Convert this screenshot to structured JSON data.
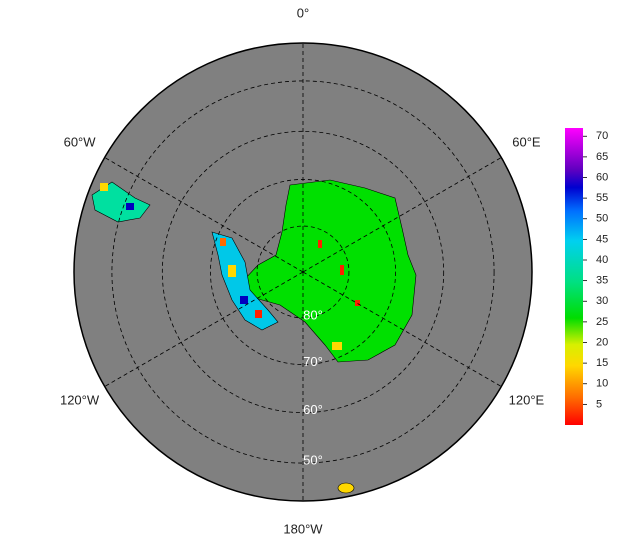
{
  "map": {
    "meridians": [
      {
        "value": 0,
        "label": "0°"
      },
      {
        "value": 60,
        "label": "60°E"
      },
      {
        "value": 120,
        "label": "120°E"
      },
      {
        "value": -180,
        "label": "180°W"
      },
      {
        "value": -120,
        "label": "120°W"
      },
      {
        "value": -60,
        "label": "60°W"
      }
    ],
    "parallels": [
      {
        "value": 80,
        "label": "80°"
      },
      {
        "value": 70,
        "label": "70°"
      },
      {
        "value": 60,
        "label": "60°"
      },
      {
        "value": 50,
        "label": "50°"
      }
    ]
  },
  "colorbar": {
    "lim": [
      0,
      72
    ],
    "ticks": [
      5,
      10,
      15,
      20,
      25,
      30,
      35,
      40,
      45,
      50,
      55,
      60,
      65,
      70
    ]
  }
}
